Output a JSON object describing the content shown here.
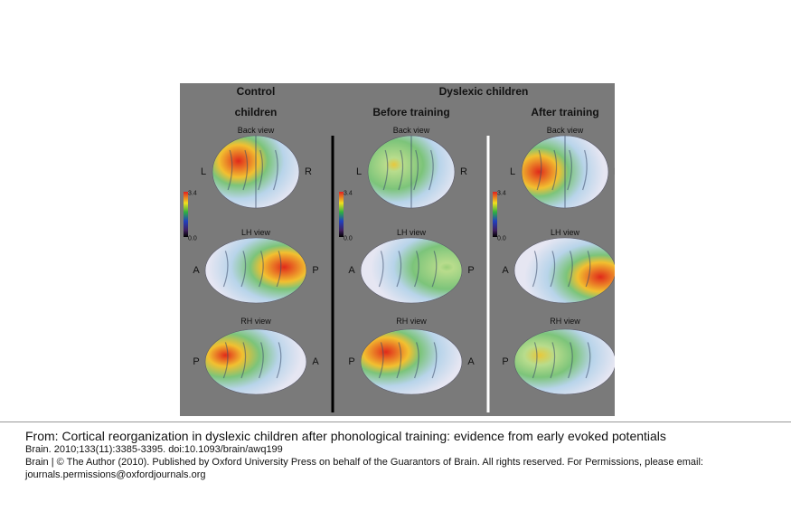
{
  "figure": {
    "dyslexic_label": "Dyslexic children",
    "columns": [
      {
        "heading": "Control children",
        "colorbar": {
          "max": "3.4",
          "min": "0.0"
        },
        "views": [
          {
            "title": "Back view",
            "left": "L",
            "right": "R"
          },
          {
            "title": "LH view",
            "left": "A",
            "right": "P"
          },
          {
            "title": "RH view",
            "left": "P",
            "right": "A"
          }
        ]
      },
      {
        "heading": "Before training",
        "colorbar": {
          "max": "3.4",
          "min": "0.0"
        },
        "views": [
          {
            "title": "Back view",
            "left": "L",
            "right": "R"
          },
          {
            "title": "LH view",
            "left": "A",
            "right": "P"
          },
          {
            "title": "RH view",
            "left": "P",
            "right": "A"
          }
        ]
      },
      {
        "heading": "After training",
        "colorbar": {
          "max": "3.4",
          "min": "0.0"
        },
        "views": [
          {
            "title": "Back view",
            "left": "L",
            "right": "R"
          },
          {
            "title": "LH view",
            "left": "A",
            "right": "P"
          },
          {
            "title": "RH view",
            "left": "P",
            "right": "A"
          }
        ]
      }
    ]
  },
  "caption": {
    "from": "From: Cortical reorganization in dyslexic children after phonological training: evidence from early evoked potentials",
    "citation": "Brain. 2010;133(11):3385-3395. doi:10.1093/brain/awq199",
    "copyright": "Brain | © The Author (2010). Published by Oxford University Press on behalf of the Guarantors of Brain. All rights reserved. For Permissions, please email: journals.permissions@oxfordjournals.org"
  }
}
